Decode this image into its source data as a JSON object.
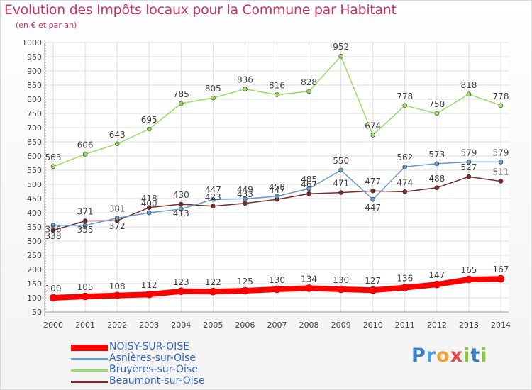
{
  "title": "Evolution des Impôts locaux pour la Commune par Habitant",
  "subtitle": "(en € et par an)",
  "logo_text": "Proxiti",
  "chart_data": {
    "type": "line",
    "title": "Evolution des Impôts locaux pour la Commune par Habitant",
    "subtitle": "(en € et par an)",
    "xlabel": "",
    "ylabel": "",
    "x": [
      2000,
      2001,
      2002,
      2003,
      2004,
      2005,
      2006,
      2007,
      2008,
      2009,
      2010,
      2011,
      2012,
      2013,
      2014
    ],
    "ylim": [
      50,
      1000
    ],
    "yticks": [
      50,
      100,
      150,
      200,
      250,
      300,
      350,
      400,
      450,
      500,
      550,
      600,
      650,
      700,
      750,
      800,
      850,
      900,
      950,
      1000
    ],
    "grid": true,
    "legend_position": "bottom-left",
    "series": [
      {
        "name": "NOISY-SUR-OISE",
        "color": "#ff0000",
        "values": [
          100,
          105,
          108,
          112,
          123,
          122,
          125,
          130,
          134,
          130,
          127,
          136,
          147,
          165,
          167
        ]
      },
      {
        "name": "Asnières-sur-Oise",
        "color": "#6699cc",
        "values": [
          356,
          355,
          381,
          400,
          413,
          447,
          449,
          458,
          485,
          550,
          447,
          562,
          573,
          579,
          579
        ]
      },
      {
        "name": "Bruyères-sur-Oise",
        "color": "#99dd66",
        "values": [
          563,
          606,
          643,
          695,
          785,
          805,
          836,
          816,
          828,
          952,
          674,
          778,
          750,
          818,
          778
        ]
      },
      {
        "name": "Beaumont-sur-Oise",
        "color": "#7a2a2a",
        "values": [
          338,
          371,
          372,
          418,
          430,
          423,
          433,
          447,
          467,
          471,
          477,
          474,
          488,
          527,
          511
        ]
      }
    ]
  }
}
